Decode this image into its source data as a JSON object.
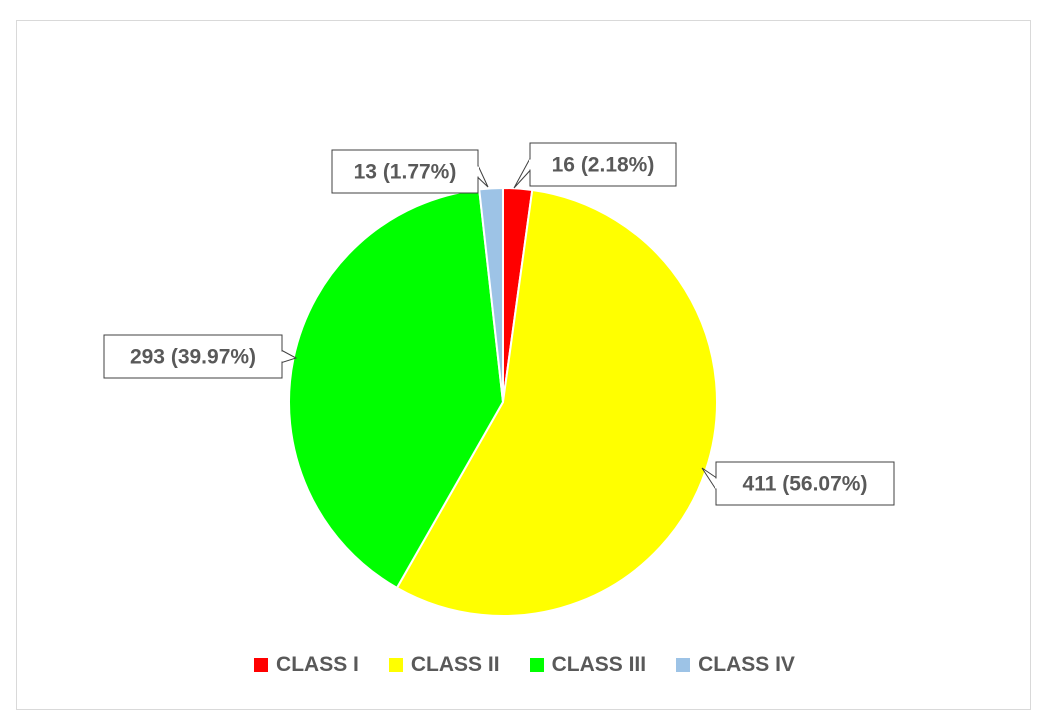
{
  "chart_data": {
    "type": "pie",
    "categories": [
      "CLASS I",
      "CLASS II",
      "CLASS III",
      "CLASS IV"
    ],
    "values": [
      16,
      411,
      293,
      13
    ],
    "percentages": [
      2.18,
      56.07,
      39.97,
      1.77
    ],
    "data_labels": [
      "16 (2.18%)",
      "411 (56.07%)",
      "293 (39.97%)",
      "13 (1.77%)"
    ],
    "colors": [
      "#ff0000",
      "#ffff00",
      "#00ff00",
      "#9dc3e6"
    ],
    "legend_position": "bottom"
  }
}
